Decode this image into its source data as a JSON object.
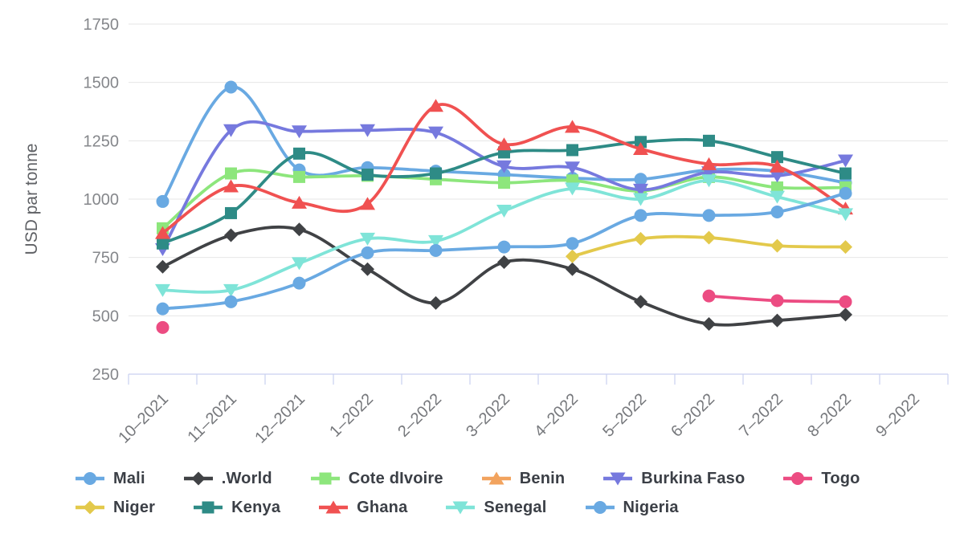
{
  "chart_data": {
    "type": "line",
    "title": "",
    "xlabel": "",
    "ylabel": "USD par tonne",
    "ylim": [
      250,
      1750
    ],
    "yticks": [
      250,
      500,
      750,
      1000,
      1250,
      1500,
      1750
    ],
    "grid": true,
    "legend_position": "bottom",
    "categories": [
      "10–2021",
      "11–2021",
      "12–2021",
      "1–2022",
      "2–2022",
      "3–2022",
      "4–2022",
      "5–2022",
      "6–2022",
      "7–2022",
      "8–2022",
      "9–2022"
    ],
    "series": [
      {
        "name": "Mali",
        "color": "#69a9e2",
        "marker": "circle",
        "values": [
          990,
          1480,
          1125,
          1135,
          1120,
          1105,
          1090,
          1085,
          1125,
          1120,
          1070,
          null
        ]
      },
      {
        "name": ".World",
        "color": "#404245",
        "marker": "diamond",
        "values": [
          710,
          845,
          870,
          700,
          555,
          730,
          700,
          560,
          465,
          480,
          505,
          null
        ]
      },
      {
        "name": "Cote dIvoire",
        "color": "#8de67c",
        "marker": "square",
        "values": [
          875,
          1110,
          1095,
          1100,
          1085,
          1070,
          1080,
          1035,
          1095,
          1050,
          1050,
          null
        ]
      },
      {
        "name": "Benin",
        "color": "#f2a35e",
        "marker": "triangle-up",
        "values": []
      },
      {
        "name": "Burkina Faso",
        "color": "#7679de",
        "marker": "triangle-down",
        "values": [
          785,
          1295,
          1290,
          1295,
          1285,
          1140,
          1135,
          1040,
          1115,
          1100,
          1165,
          null
        ]
      },
      {
        "name": "Togo",
        "color": "#ec4c82",
        "marker": "circle",
        "values": [
          450,
          null,
          null,
          null,
          null,
          null,
          null,
          null,
          585,
          565,
          560,
          null
        ]
      },
      {
        "name": "Niger",
        "color": "#e3c94b",
        "marker": "diamond",
        "values": [
          null,
          null,
          null,
          null,
          null,
          null,
          755,
          830,
          835,
          800,
          795,
          null
        ]
      },
      {
        "name": "Kenya",
        "color": "#2e8b86",
        "marker": "square",
        "values": [
          810,
          940,
          1195,
          1105,
          1110,
          1200,
          1210,
          1245,
          1250,
          1180,
          1110,
          null
        ]
      },
      {
        "name": "Ghana",
        "color": "#f05151",
        "marker": "triangle-up",
        "values": [
          855,
          1055,
          985,
          980,
          1400,
          1235,
          1310,
          1215,
          1150,
          1140,
          960,
          null
        ]
      },
      {
        "name": "Senegal",
        "color": "#7fe4d8",
        "marker": "triangle-down",
        "values": [
          610,
          610,
          725,
          830,
          820,
          950,
          1045,
          1000,
          1080,
          1010,
          935,
          null
        ]
      },
      {
        "name": "Nigeria",
        "color": "#69a9e2",
        "marker": "circle",
        "values": [
          530,
          560,
          640,
          770,
          780,
          795,
          810,
          930,
          930,
          945,
          1025,
          null
        ]
      }
    ],
    "legend_rows": [
      6,
      5
    ]
  },
  "colors": {
    "grid": "#e6e6e6",
    "axis": "#c9d0f0",
    "y_tick_label": "#85878b",
    "x_tick_label": "#76787c",
    "axis_title": "#5f6165"
  }
}
